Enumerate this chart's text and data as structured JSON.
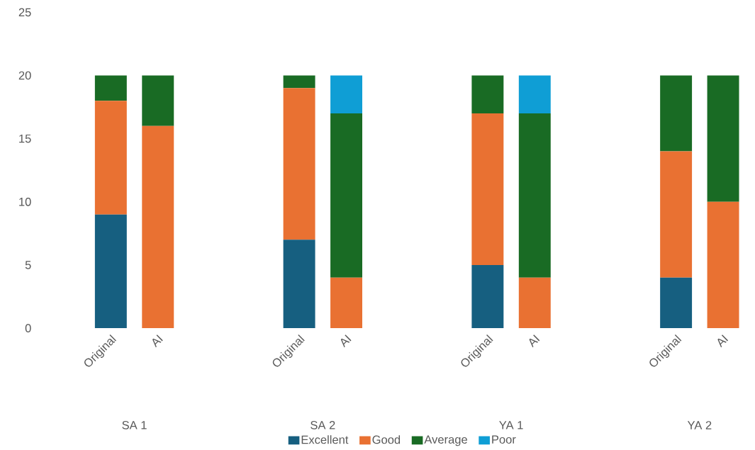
{
  "chart_data": {
    "type": "bar",
    "stacked": true,
    "categories": [
      "Original",
      "AI",
      "Original",
      "AI",
      "Original",
      "AI",
      "Original",
      "AI"
    ],
    "series": [
      {
        "name": "Excellent",
        "color": "#165f80",
        "values": [
          9,
          0,
          7,
          0,
          5,
          0,
          4,
          0
        ]
      },
      {
        "name": "Good",
        "color": "#e97132",
        "values": [
          9,
          16,
          12,
          4,
          12,
          4,
          10,
          10
        ]
      },
      {
        "name": "Average",
        "color": "#196b24",
        "values": [
          2,
          4,
          1,
          13,
          3,
          13,
          6,
          10
        ]
      },
      {
        "name": "Poor",
        "color": "#0f9ed5",
        "values": [
          0,
          0,
          0,
          3,
          0,
          3,
          0,
          0
        ]
      }
    ],
    "annotations": [
      "SA 1",
      "SA 2",
      "YA 1",
      "YA 2"
    ],
    "ylim": [
      0,
      25
    ],
    "yticks": [
      0,
      5,
      10,
      15,
      20,
      25
    ],
    "grid": false,
    "legend": "bottom"
  }
}
